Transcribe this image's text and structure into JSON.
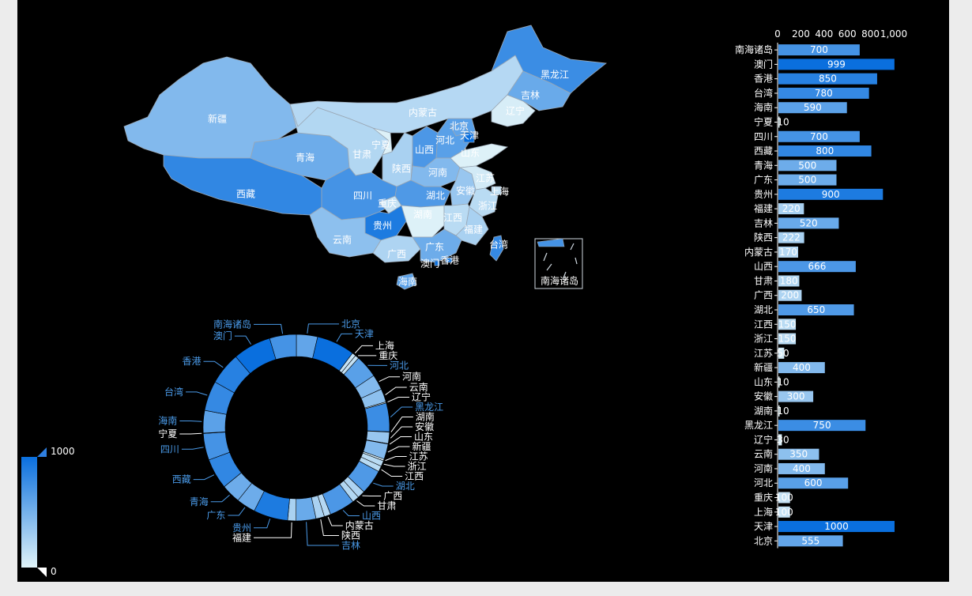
{
  "chart_data": [
    {
      "type": "map",
      "title": "",
      "regions": [
        {
          "name": "新疆",
          "value": 400
        },
        {
          "name": "西藏",
          "value": 800
        },
        {
          "name": "青海",
          "value": 500
        },
        {
          "name": "甘肃",
          "value": 180
        },
        {
          "name": "宁夏",
          "value": 10
        },
        {
          "name": "内蒙古",
          "value": 170
        },
        {
          "name": "陕西",
          "value": 222
        },
        {
          "name": "山西",
          "value": 666
        },
        {
          "name": "河北",
          "value": 600
        },
        {
          "name": "北京",
          "value": 555
        },
        {
          "name": "天津",
          "value": 1000
        },
        {
          "name": "山东",
          "value": 10
        },
        {
          "name": "河南",
          "value": 400
        },
        {
          "name": "四川",
          "value": 700
        },
        {
          "name": "重庆",
          "value": 100
        },
        {
          "name": "湖北",
          "value": 650
        },
        {
          "name": "安徽",
          "value": 300
        },
        {
          "name": "江苏",
          "value": 50
        },
        {
          "name": "上海",
          "value": 100
        },
        {
          "name": "浙江",
          "value": 150
        },
        {
          "name": "贵州",
          "value": 900
        },
        {
          "name": "湖南",
          "value": 10
        },
        {
          "name": "江西",
          "value": 150
        },
        {
          "name": "福建",
          "value": 220
        },
        {
          "name": "云南",
          "value": 350
        },
        {
          "name": "广西",
          "value": 200
        },
        {
          "name": "广东",
          "value": 500
        },
        {
          "name": "海南",
          "value": 590
        },
        {
          "name": "台湾",
          "value": 780
        },
        {
          "name": "香港",
          "value": 850
        },
        {
          "name": "澳门",
          "value": 999
        },
        {
          "name": "辽宁",
          "value": 30
        },
        {
          "name": "吉林",
          "value": 520
        },
        {
          "name": "黑龙江",
          "value": 750
        },
        {
          "name": "南海诸岛",
          "value": 700
        }
      ]
    },
    {
      "type": "pie",
      "categories": [
        "北京",
        "天津",
        "上海",
        "重庆",
        "河北",
        "河南",
        "云南",
        "辽宁",
        "黑龙江",
        "湖南",
        "安徽",
        "山东",
        "新疆",
        "江苏",
        "浙江",
        "江西",
        "湖北",
        "广西",
        "甘肃",
        "山西",
        "内蒙古",
        "陕西",
        "吉林",
        "福建",
        "贵州",
        "广东",
        "青海",
        "西藏",
        "四川",
        "宁夏",
        "海南",
        "台湾",
        "香港",
        "澳门",
        "南海诸岛"
      ],
      "values": [
        555,
        1000,
        100,
        100,
        600,
        400,
        350,
        30,
        750,
        10,
        300,
        10,
        400,
        50,
        150,
        150,
        650,
        200,
        180,
        666,
        170,
        222,
        520,
        220,
        900,
        500,
        500,
        800,
        700,
        10,
        590,
        780,
        850,
        999,
        700
      ]
    },
    {
      "type": "bar",
      "orientation": "horizontal",
      "categories": [
        "南海诸岛",
        "澳门",
        "香港",
        "台湾",
        "海南",
        "宁夏",
        "四川",
        "西藏",
        "青海",
        "广东",
        "贵州",
        "福建",
        "吉林",
        "陕西",
        "内蒙古",
        "山西",
        "甘肃",
        "广西",
        "湖北",
        "江西",
        "浙江",
        "江苏",
        "新疆",
        "山东",
        "安徽",
        "湖南",
        "黑龙江",
        "辽宁",
        "云南",
        "河南",
        "河北",
        "重庆",
        "上海",
        "天津",
        "北京"
      ],
      "values": [
        700,
        999,
        850,
        780,
        590,
        10,
        700,
        800,
        500,
        500,
        900,
        220,
        520,
        222,
        170,
        666,
        180,
        200,
        650,
        150,
        150,
        50,
        400,
        10,
        300,
        10,
        750,
        30,
        350,
        400,
        600,
        100,
        100,
        1000,
        555
      ],
      "xlim": [
        0,
        1000
      ],
      "x_ticks": [
        "0",
        "200",
        "400",
        "600",
        "800",
        "1,000"
      ]
    }
  ],
  "visual_map": {
    "min_label": "0",
    "max_label": "1000",
    "min": 0,
    "max": 1000
  },
  "colors": {
    "background": "#000000",
    "page_background": "#ececec",
    "scale_low": "#e0f3f8",
    "scale_high": "#0a6fde",
    "map_border": "#9aa7b4"
  }
}
